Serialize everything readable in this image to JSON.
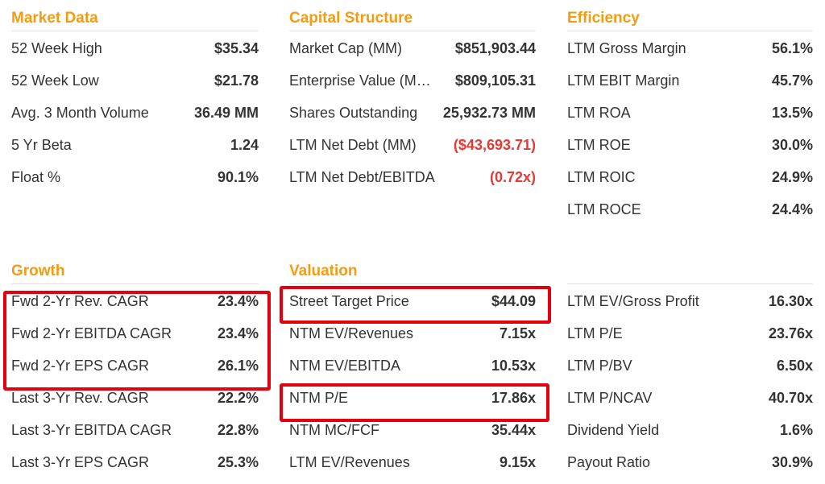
{
  "market_data": {
    "title": "Market Data",
    "rows": [
      {
        "label": "52 Week High",
        "value": "$35.34"
      },
      {
        "label": "52 Week Low",
        "value": "$21.78"
      },
      {
        "label": "Avg. 3 Month Volume",
        "value": "36.49 MM"
      },
      {
        "label": "5 Yr Beta",
        "value": "1.24"
      },
      {
        "label": "Float %",
        "value": "90.1%"
      }
    ]
  },
  "capital_structure": {
    "title": "Capital Structure",
    "rows": [
      {
        "label": "Market Cap (MM)",
        "value": "$851,903.44"
      },
      {
        "label": "Enterprise Value (M…",
        "value": "$809,105.31"
      },
      {
        "label": "Shares Outstanding",
        "value": "25,932.73 MM"
      },
      {
        "label": "LTM Net Debt (MM)",
        "value": "($43,693.71)"
      },
      {
        "label": "LTM Net Debt/EBITDA",
        "value": "(0.72x)"
      }
    ]
  },
  "efficiency": {
    "title": "Efficiency",
    "rows": [
      {
        "label": "LTM Gross Margin",
        "value": "56.1%"
      },
      {
        "label": "LTM EBIT Margin",
        "value": "45.7%"
      },
      {
        "label": "LTM ROA",
        "value": "13.5%"
      },
      {
        "label": "LTM ROE",
        "value": "30.0%"
      },
      {
        "label": "LTM ROIC",
        "value": "24.9%"
      },
      {
        "label": "LTM ROCE",
        "value": "24.4%"
      }
    ]
  },
  "growth": {
    "title": "Growth",
    "rows": [
      {
        "label": "Fwd 2-Yr Rev. CAGR",
        "value": "23.4%"
      },
      {
        "label": "Fwd 2-Yr EBITDA CAGR",
        "value": "23.4%"
      },
      {
        "label": "Fwd 2-Yr EPS CAGR",
        "value": "26.1%"
      },
      {
        "label": "Last 3-Yr Rev. CAGR",
        "value": "22.2%"
      },
      {
        "label": "Last 3-Yr EBITDA CAGR",
        "value": "22.8%"
      },
      {
        "label": "Last 3-Yr EPS CAGR",
        "value": "25.3%"
      }
    ]
  },
  "valuation": {
    "title": "Valuation",
    "rows": [
      {
        "label": "Street Target Price",
        "value": "$44.09"
      },
      {
        "label": "NTM EV/Revenues",
        "value": "7.15x"
      },
      {
        "label": "NTM EV/EBITDA",
        "value": "10.53x"
      },
      {
        "label": "NTM P/E",
        "value": "17.86x"
      },
      {
        "label": "NTM MC/FCF",
        "value": "35.44x"
      },
      {
        "label": "LTM EV/Revenues",
        "value": "9.15x"
      }
    ]
  },
  "valuation_ltm": {
    "rows": [
      {
        "label": "LTM EV/Gross Profit",
        "value": "16.30x"
      },
      {
        "label": "LTM P/E",
        "value": "23.76x"
      },
      {
        "label": "LTM P/BV",
        "value": "6.50x"
      },
      {
        "label": "LTM P/NCAV",
        "value": "40.70x"
      },
      {
        "label": "Dividend Yield",
        "value": "1.6%"
      },
      {
        "label": "Payout Ratio",
        "value": "30.9%"
      }
    ]
  },
  "colors": {
    "section_title": "#f39c12",
    "negative": "#e53935",
    "highlight": "#e3000f"
  }
}
